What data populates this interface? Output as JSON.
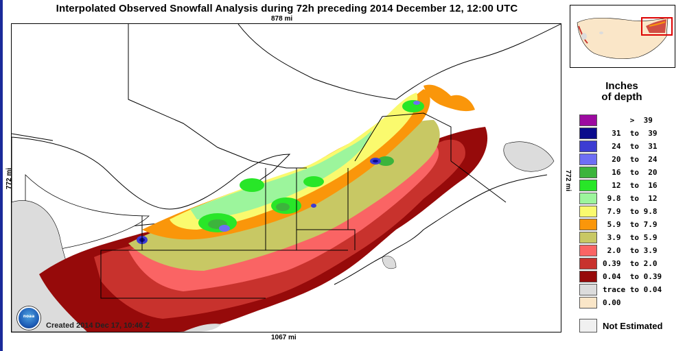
{
  "title": "Interpolated Observed Snowfall Analysis during 72h preceding 2014 December 12, 12:00 UTC",
  "scale": {
    "top": "878 mi",
    "bottom": "1067 mi",
    "left": "772 mi",
    "right": "772 mi"
  },
  "created": "Created 2014 Dec 17, 10:46 Z",
  "logo": {
    "text": "noaa",
    "icon": "noaa-logo"
  },
  "legend": {
    "title_line1": "Inches",
    "title_line2": "of depth",
    "items": [
      {
        "label": "      >  39",
        "color": "#9c0aa0"
      },
      {
        "label": "  31  to  39",
        "color": "#0a0a8c"
      },
      {
        "label": "  24  to  31",
        "color": "#3c3cd2"
      },
      {
        "label": "  20  to  24",
        "color": "#6e6ef5"
      },
      {
        "label": "  16  to  20",
        "color": "#3cb43c"
      },
      {
        "label": "  12  to  16",
        "color": "#28e628"
      },
      {
        "label": " 9.8  to  12",
        "color": "#9cf59c"
      },
      {
        "label": " 7.9  to 9.8",
        "color": "#fafa6e"
      },
      {
        "label": " 5.9  to 7.9",
        "color": "#fa960a"
      },
      {
        "label": " 3.9  to 5.9",
        "color": "#c8c864"
      },
      {
        "label": " 2.0  to 3.9",
        "color": "#fa6464"
      },
      {
        "label": "0.39  to 2.0",
        "color": "#c8322d"
      },
      {
        "label": "0.04  to 0.39",
        "color": "#960a0a"
      },
      {
        "label": "trace to 0.04",
        "color": "#dcdcdc"
      },
      {
        "label": "0.00",
        "color": "#fae6c8"
      }
    ],
    "not_estimated": "Not Estimated"
  },
  "colors": {
    "water": "#ffffff",
    "border": "#000000",
    "outline_box": "#dd0000"
  }
}
